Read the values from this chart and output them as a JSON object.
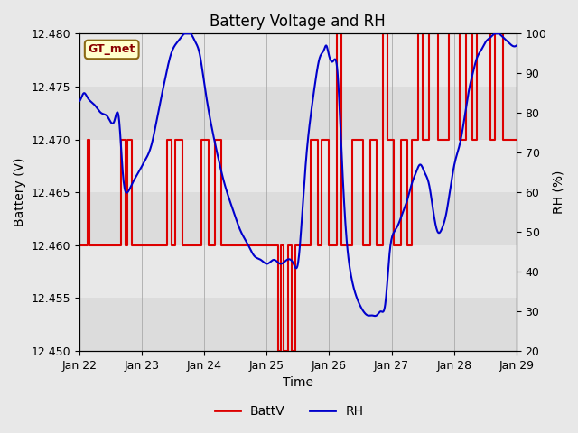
{
  "title": "Battery Voltage and RH",
  "xlabel": "Time",
  "ylabel_left": "Battery (V)",
  "ylabel_right": "RH (%)",
  "annotation": "GT_met",
  "ylim_left": [
    12.45,
    12.48
  ],
  "ylim_right": [
    20,
    100
  ],
  "yticks_left": [
    12.45,
    12.455,
    12.46,
    12.465,
    12.47,
    12.475,
    12.48
  ],
  "yticks_right": [
    20,
    30,
    40,
    50,
    60,
    70,
    80,
    90,
    100
  ],
  "xtick_labels": [
    "Jan 22",
    "Jan 23",
    "Jan 24",
    "Jan 25",
    "Jan 26",
    "Jan 27",
    "Jan 28",
    "Jan 29"
  ],
  "bg_color": "#e8e8e8",
  "plot_bg_color": "#f0f0f0",
  "band_colors": [
    "#dcdcdc",
    "#e8e8e8"
  ],
  "batt_color": "#dd0000",
  "rh_color": "#0000cc",
  "legend_batt": "BattV",
  "legend_rh": "RH",
  "batt_data": [
    [
      0.0,
      12.46
    ],
    [
      0.18,
      12.46
    ],
    [
      0.18,
      12.47
    ],
    [
      0.22,
      12.47
    ],
    [
      0.22,
      12.46
    ],
    [
      0.95,
      12.46
    ],
    [
      0.95,
      12.47
    ],
    [
      1.05,
      12.47
    ],
    [
      1.05,
      12.46
    ],
    [
      1.1,
      12.46
    ],
    [
      1.1,
      12.47
    ],
    [
      1.2,
      12.47
    ],
    [
      1.2,
      12.46
    ],
    [
      2.0,
      12.46
    ],
    [
      2.0,
      12.47
    ],
    [
      2.1,
      12.47
    ],
    [
      2.1,
      12.46
    ],
    [
      2.2,
      12.46
    ],
    [
      2.2,
      12.47
    ],
    [
      2.35,
      12.47
    ],
    [
      2.35,
      12.46
    ],
    [
      2.8,
      12.46
    ],
    [
      2.8,
      12.47
    ],
    [
      2.95,
      12.47
    ],
    [
      2.95,
      12.46
    ],
    [
      3.1,
      12.46
    ],
    [
      3.1,
      12.47
    ],
    [
      3.25,
      12.47
    ],
    [
      3.25,
      12.46
    ],
    [
      3.7,
      12.46
    ],
    [
      3.7,
      12.46
    ],
    [
      4.55,
      12.46
    ],
    [
      4.55,
      12.45
    ],
    [
      4.62,
      12.45
    ],
    [
      4.62,
      12.46
    ],
    [
      4.68,
      12.46
    ],
    [
      4.68,
      12.45
    ],
    [
      4.78,
      12.45
    ],
    [
      4.78,
      12.46
    ],
    [
      4.85,
      12.46
    ],
    [
      4.85,
      12.45
    ],
    [
      4.95,
      12.45
    ],
    [
      4.95,
      12.46
    ],
    [
      5.3,
      12.46
    ],
    [
      5.3,
      12.47
    ],
    [
      5.45,
      12.47
    ],
    [
      5.45,
      12.46
    ],
    [
      5.55,
      12.46
    ],
    [
      5.55,
      12.47
    ],
    [
      5.7,
      12.47
    ],
    [
      5.7,
      12.46
    ],
    [
      5.9,
      12.46
    ],
    [
      5.9,
      12.48
    ],
    [
      6.0,
      12.48
    ],
    [
      6.0,
      12.46
    ],
    [
      6.25,
      12.46
    ],
    [
      6.25,
      12.47
    ],
    [
      6.5,
      12.47
    ],
    [
      6.5,
      12.46
    ],
    [
      6.65,
      12.46
    ],
    [
      6.65,
      12.47
    ],
    [
      6.8,
      12.47
    ],
    [
      6.8,
      12.46
    ],
    [
      6.95,
      12.46
    ],
    [
      6.95,
      12.48
    ],
    [
      7.05,
      12.48
    ],
    [
      7.05,
      12.47
    ],
    [
      7.2,
      12.47
    ],
    [
      7.2,
      12.46
    ],
    [
      7.35,
      12.46
    ],
    [
      7.35,
      12.47
    ],
    [
      7.5,
      12.47
    ],
    [
      7.5,
      12.46
    ],
    [
      7.6,
      12.46
    ],
    [
      7.6,
      12.47
    ],
    [
      7.75,
      12.47
    ],
    [
      7.75,
      12.48
    ],
    [
      7.85,
      12.48
    ],
    [
      7.85,
      12.47
    ],
    [
      8.0,
      12.47
    ],
    [
      8.0,
      12.48
    ],
    [
      8.2,
      12.48
    ],
    [
      8.2,
      12.47
    ],
    [
      8.45,
      12.47
    ],
    [
      8.45,
      12.48
    ],
    [
      8.7,
      12.48
    ],
    [
      8.7,
      12.47
    ],
    [
      8.85,
      12.47
    ],
    [
      8.85,
      12.48
    ],
    [
      9.0,
      12.48
    ],
    [
      9.0,
      12.47
    ],
    [
      9.1,
      12.47
    ],
    [
      9.1,
      12.48
    ],
    [
      9.4,
      12.48
    ],
    [
      9.4,
      12.47
    ],
    [
      9.5,
      12.47
    ],
    [
      9.5,
      12.48
    ],
    [
      9.7,
      12.48
    ],
    [
      9.7,
      12.47
    ],
    [
      10.0,
      12.47
    ]
  ],
  "rh_knots_x": [
    0.0,
    0.05,
    0.1,
    0.18,
    0.25,
    0.35,
    0.5,
    0.65,
    0.8,
    0.9,
    1.0,
    1.1,
    1.2,
    1.35,
    1.5,
    1.65,
    1.8,
    1.95,
    2.1,
    2.25,
    2.4,
    2.55,
    2.65,
    2.75,
    2.85,
    3.0,
    3.15,
    3.3,
    3.5,
    3.7,
    3.85,
    4.0,
    4.15,
    4.3,
    4.45,
    4.6,
    4.75,
    4.9,
    5.0,
    5.1,
    5.2,
    5.3,
    5.4,
    5.5,
    5.6,
    5.65,
    5.7,
    5.8,
    5.9,
    6.0,
    6.1,
    6.2,
    6.3,
    6.4,
    6.5,
    6.6,
    6.7,
    6.8,
    6.9,
    7.0,
    7.1,
    7.2,
    7.3,
    7.4,
    7.5,
    7.6,
    7.7,
    7.8,
    7.9,
    8.0,
    8.1,
    8.2,
    8.3,
    8.4,
    8.5,
    8.6,
    8.7,
    8.8,
    8.9,
    9.0,
    9.1,
    9.2,
    9.3,
    9.4,
    9.5,
    9.6,
    9.7,
    9.8,
    9.9,
    10.0
  ],
  "rh_knots_y": [
    83,
    84,
    85,
    84,
    83,
    82,
    80,
    79,
    78,
    79,
    64,
    60,
    62,
    65,
    68,
    72,
    80,
    88,
    95,
    98,
    100,
    100,
    98,
    95,
    88,
    78,
    70,
    63,
    56,
    50,
    47,
    44,
    43,
    42,
    43,
    42,
    43,
    42,
    42,
    55,
    70,
    80,
    88,
    94,
    96,
    97,
    95,
    93,
    91,
    70,
    50,
    40,
    35,
    32,
    30,
    29,
    29,
    29,
    30,
    32,
    45,
    50,
    52,
    55,
    58,
    62,
    65,
    67,
    65,
    62,
    55,
    50,
    51,
    55,
    62,
    68,
    72,
    78,
    85,
    90,
    94,
    96,
    98,
    99,
    100,
    100,
    99,
    98,
    97,
    97
  ]
}
